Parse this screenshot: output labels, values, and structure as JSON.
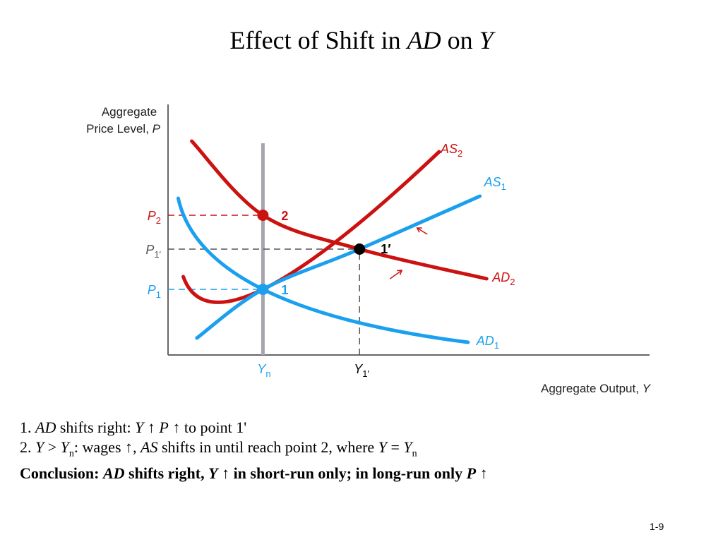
{
  "title": {
    "part1": "Effect of Shift in ",
    "part2": "AD",
    "part3": " on ",
    "part4": "Y"
  },
  "chart_data": {
    "type": "line",
    "xlabel": {
      "text": "Aggregate Output, ",
      "var": "Y"
    },
    "ylabel": {
      "line1": "Aggregate",
      "line2": "Price Level, ",
      "var": "P"
    },
    "colors": {
      "red": "#cc1111",
      "blue": "#1aa0ee",
      "gray": "#a8a4ae",
      "black": "#000000",
      "dash_black": "#555555"
    },
    "curves": [
      {
        "name": "AS",
        "sub": "2",
        "color": "red",
        "pts": [
          [
            0.9,
            3.7
          ],
          [
            5.6,
            3.1
          ],
          [
            16.0,
            9.6
          ]
        ]
      },
      {
        "name": "AS",
        "sub": "1",
        "color": "blue",
        "pts": [
          [
            1.7,
            0.8
          ],
          [
            5.6,
            3.1
          ],
          [
            11.3,
            5.0
          ],
          [
            18.4,
            7.5
          ]
        ]
      },
      {
        "name": "AD",
        "sub": "2",
        "color": "red",
        "pts": [
          [
            1.4,
            10.1
          ],
          [
            5.6,
            6.6
          ],
          [
            11.3,
            5.0
          ],
          [
            18.8,
            3.6
          ]
        ]
      },
      {
        "name": "AD",
        "sub": "1",
        "color": "blue",
        "pts": [
          [
            0.6,
            7.4
          ],
          [
            5.6,
            3.1
          ],
          [
            17.7,
            0.6
          ]
        ]
      }
    ],
    "lras": {
      "x": 5.6,
      "y_top": 10.0
    },
    "points": [
      {
        "label": "2",
        "x": 5.6,
        "y": 6.6,
        "color": "red"
      },
      {
        "label": "1′",
        "x": 11.3,
        "y": 5.0,
        "color": "black"
      },
      {
        "label": "1",
        "x": 5.6,
        "y": 3.1,
        "color": "blue"
      }
    ],
    "price_levels": [
      {
        "label": "P",
        "sub": "2",
        "y": 6.6,
        "x_end": 5.6,
        "color": "red"
      },
      {
        "label": "P",
        "sub": "1′",
        "y": 5.0,
        "x_end": 11.3,
        "color": "dash_black"
      },
      {
        "label": "P",
        "sub": "1",
        "y": 3.1,
        "x_end": 5.6,
        "color": "blue"
      }
    ],
    "output_levels": [
      {
        "label": "Y",
        "sub": "n",
        "x": 5.6,
        "color": "blue"
      },
      {
        "label": "Y",
        "sub": "1′",
        "x": 11.3,
        "color": "black"
      }
    ],
    "arrows": [
      {
        "x1": 15.3,
        "y1": 5.7,
        "x2": 14.7,
        "y2": 6.0,
        "color": "red"
      },
      {
        "x1": 13.1,
        "y1": 3.6,
        "x2": 13.8,
        "y2": 4.0,
        "color": "red"
      }
    ],
    "xlim": [
      0,
      21
    ],
    "ylim": [
      0,
      10.5
    ],
    "grid": false
  },
  "notes": {
    "line1": {
      "num": "1. ",
      "ad": "AD",
      "t1": " shifts right: ",
      "y": "Y",
      "t2": " ↑ ",
      "p": "P",
      "t3": " ↑ to point 1'"
    },
    "line2": {
      "num": "2. ",
      "y": "Y",
      "t1": " > ",
      "y2": "Y",
      "sub1": "n",
      "t2": ": wages ↑, ",
      "as": "AS",
      "t3": " shifts in until reach point 2, where ",
      "y3": "Y",
      "t4": " = ",
      "y4": "Y",
      "sub2": "n"
    },
    "line3": {
      "t0": "Conclusion: ",
      "ad": "AD",
      "t1": " shifts right, ",
      "y": "Y",
      "t2": " ↑ in short-run only; in long-run only ",
      "p": "P",
      "t3": " ↑"
    }
  },
  "page_number": "1-9"
}
